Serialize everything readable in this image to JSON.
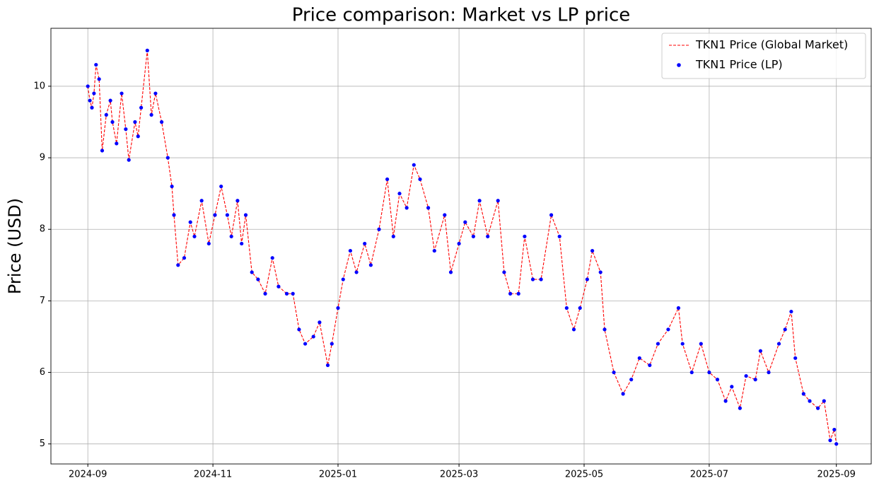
{
  "chart_data": {
    "type": "line",
    "title": "Price comparison: Market vs LP price",
    "y_label": "Price (USD)",
    "x": [
      0,
      1,
      2,
      3,
      4,
      5.5,
      7,
      9,
      11,
      12,
      14,
      16.5,
      18.5,
      20,
      23,
      24.5,
      26,
      29,
      31,
      33,
      36,
      39,
      41,
      42,
      44,
      47,
      50,
      52,
      55.5,
      59,
      62,
      65,
      68,
      70,
      73,
      75,
      77,
      80,
      83,
      86.5,
      90,
      93,
      97,
      100,
      103,
      106,
      110,
      113,
      117,
      119,
      122,
      124.5,
      128,
      131,
      135,
      138,
      142,
      146,
      149,
      152,
      155.5,
      159,
      162,
      166,
      169,
      174,
      177,
      181,
      184,
      188,
      191,
      195,
      200,
      203,
      206,
      210,
      213,
      217,
      221,
      226,
      230,
      233.5,
      237,
      240,
      243.5,
      246,
      250,
      252,
      256.5,
      261,
      265,
      269,
      274,
      278,
      283,
      288,
      290,
      294.5,
      299,
      303,
      307,
      311,
      314,
      318,
      321,
      325.5,
      328,
      332,
      337,
      340,
      343,
      345,
      349,
      352,
      356,
      359,
      362,
      364,
      365
    ],
    "series": [
      {
        "name": "TKN1 Price (Global Market)",
        "color": "#ff0000",
        "style": "dashed",
        "values": [
          10.0,
          9.8,
          9.7,
          9.9,
          10.3,
          10.1,
          9.1,
          9.6,
          9.8,
          9.5,
          9.2,
          9.9,
          9.4,
          8.97,
          9.5,
          9.3,
          9.7,
          10.5,
          9.6,
          9.9,
          9.5,
          9.0,
          8.6,
          8.2,
          7.5,
          7.6,
          8.1,
          7.9,
          8.4,
          7.8,
          8.2,
          8.6,
          8.2,
          7.9,
          8.4,
          7.8,
          8.2,
          7.4,
          7.3,
          7.1,
          7.6,
          7.2,
          7.1,
          7.1,
          6.6,
          6.4,
          6.5,
          6.7,
          6.1,
          6.4,
          6.9,
          7.3,
          7.7,
          7.4,
          7.8,
          7.5,
          8.0,
          8.7,
          7.9,
          8.5,
          8.3,
          8.9,
          8.7,
          8.3,
          7.7,
          8.2,
          7.4,
          7.8,
          8.1,
          7.9,
          8.4,
          7.9,
          8.4,
          7.4,
          7.1,
          7.1,
          7.9,
          7.3,
          7.3,
          8.2,
          7.9,
          6.9,
          6.6,
          6.9,
          7.3,
          7.7,
          7.4,
          6.6,
          6.0,
          5.7,
          5.9,
          6.2,
          6.1,
          6.4,
          6.6,
          6.9,
          6.4,
          6.0,
          6.4,
          6.0,
          5.9,
          5.6,
          5.8,
          5.5,
          5.95,
          5.9,
          6.3,
          6.0,
          6.4,
          6.6,
          6.85,
          6.2,
          5.7,
          5.6,
          5.5,
          5.6,
          5.05,
          5.2,
          5.0
        ]
      },
      {
        "name": "TKN1 Price (LP)",
        "color": "#0000ff",
        "style": "points",
        "values": [
          10.0,
          9.8,
          9.7,
          9.9,
          10.3,
          10.1,
          9.1,
          9.6,
          9.8,
          9.5,
          9.2,
          9.9,
          9.4,
          8.97,
          9.5,
          9.3,
          9.7,
          10.5,
          9.6,
          9.9,
          9.5,
          9.0,
          8.6,
          8.2,
          7.5,
          7.6,
          8.1,
          7.9,
          8.4,
          7.8,
          8.2,
          8.6,
          8.2,
          7.9,
          8.4,
          7.8,
          8.2,
          7.4,
          7.3,
          7.1,
          7.6,
          7.2,
          7.1,
          7.1,
          6.6,
          6.4,
          6.5,
          6.7,
          6.1,
          6.4,
          6.9,
          7.3,
          7.7,
          7.4,
          7.8,
          7.5,
          8.0,
          8.7,
          7.9,
          8.5,
          8.3,
          8.9,
          8.7,
          8.3,
          7.7,
          8.2,
          7.4,
          7.8,
          8.1,
          7.9,
          8.4,
          7.9,
          8.4,
          7.4,
          7.1,
          7.1,
          7.9,
          7.3,
          7.3,
          8.2,
          7.9,
          6.9,
          6.6,
          6.9,
          7.3,
          7.7,
          7.4,
          6.6,
          6.0,
          5.7,
          5.9,
          6.2,
          6.1,
          6.4,
          6.6,
          6.9,
          6.4,
          6.0,
          6.4,
          6.0,
          5.9,
          5.6,
          5.8,
          5.5,
          5.95,
          5.9,
          6.3,
          6.0,
          6.4,
          6.6,
          6.85,
          6.2,
          5.7,
          5.6,
          5.5,
          5.6,
          5.05,
          5.2,
          5.0
        ]
      }
    ],
    "xlim": [
      -18,
      382
    ],
    "xticks": [
      {
        "value": 0,
        "label": "2024-09"
      },
      {
        "value": 61,
        "label": "2024-11"
      },
      {
        "value": 122,
        "label": "2025-01"
      },
      {
        "value": 181,
        "label": "2025-03"
      },
      {
        "value": 242,
        "label": "2025-05"
      },
      {
        "value": 303,
        "label": "2025-07"
      },
      {
        "value": 365,
        "label": "2025-09"
      }
    ],
    "ylim": [
      4.72,
      10.81
    ],
    "yticks": [
      5,
      6,
      7,
      8,
      9,
      10
    ],
    "grid": true,
    "legend": "upper-right"
  }
}
